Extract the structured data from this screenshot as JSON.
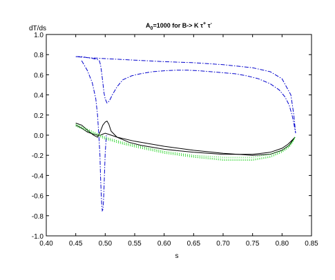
{
  "chart_data": {
    "type": "line",
    "title": {
      "prefix": "A",
      "prefix_sub": "0",
      "middle": "=1000 for B-> K ",
      "tau1": "τ",
      "tau1_sup": "+",
      "tau2": " τ",
      "tau2_sup": "-"
    },
    "xlabel": "s",
    "ylabel": "dT/ds",
    "xlim": [
      0.4,
      0.85
    ],
    "ylim": [
      -1.0,
      1.0
    ],
    "xticks": [
      "0.40",
      "0.45",
      "0.50",
      "0.55",
      "0.60",
      "0.65",
      "0.70",
      "0.75",
      "0.80",
      "0.85"
    ],
    "yticks": [
      "-1.0",
      "-0.8",
      "-0.6",
      "-0.4",
      "-0.2",
      "0.0",
      "0.2",
      "0.4",
      "0.6",
      "0.8",
      "1.0"
    ],
    "grid": false,
    "series": [
      {
        "color": "#0000cc",
        "style": "dashdot",
        "x": [
          0.45,
          0.46,
          0.47,
          0.48,
          0.487,
          0.49,
          0.492,
          0.494,
          0.496,
          0.498,
          0.5,
          0.503,
          0.507,
          0.512,
          0.52,
          0.53,
          0.545,
          0.56,
          0.58,
          0.6,
          0.62,
          0.64,
          0.66,
          0.68,
          0.7,
          0.72,
          0.74,
          0.76,
          0.78,
          0.795,
          0.805,
          0.812,
          0.817,
          0.82,
          0.822,
          0.823,
          0.822,
          0.82,
          0.815,
          0.8,
          0.78,
          0.75,
          0.7,
          0.65,
          0.6,
          0.55,
          0.5,
          0.47,
          0.45
        ],
        "y": [
          0.78,
          0.78,
          0.77,
          0.76,
          0.75,
          0.74,
          0.7,
          0.62,
          0.52,
          0.42,
          0.36,
          0.32,
          0.34,
          0.4,
          0.48,
          0.55,
          0.59,
          0.61,
          0.63,
          0.64,
          0.645,
          0.645,
          0.64,
          0.63,
          0.62,
          0.61,
          0.59,
          0.56,
          0.51,
          0.45,
          0.38,
          0.3,
          0.2,
          0.12,
          0.05,
          0.02,
          0.08,
          0.2,
          0.4,
          0.56,
          0.63,
          0.67,
          0.7,
          0.72,
          0.73,
          0.745,
          0.76,
          0.77,
          0.78
        ]
      },
      {
        "color": "#0000cc",
        "style": "dashdot",
        "x": [
          0.46,
          0.47,
          0.478,
          0.484,
          0.487,
          0.489,
          0.491,
          0.492,
          0.493,
          0.494,
          0.495,
          0.496,
          0.497,
          0.498,
          0.499,
          0.5,
          0.502
        ],
        "y": [
          0.74,
          0.64,
          0.52,
          0.36,
          0.2,
          0.02,
          -0.2,
          -0.4,
          -0.56,
          -0.68,
          -0.75,
          -0.74,
          -0.66,
          -0.52,
          -0.34,
          -0.18,
          0.0
        ]
      },
      {
        "color": "#000000",
        "style": "solid",
        "x": [
          0.45,
          0.46,
          0.47,
          0.48,
          0.487,
          0.492,
          0.496,
          0.5,
          0.503,
          0.506,
          0.51,
          0.52,
          0.54,
          0.56,
          0.6,
          0.65,
          0.7,
          0.75,
          0.78,
          0.8,
          0.81,
          0.817,
          0.822
        ],
        "y": [
          0.12,
          0.1,
          0.05,
          -0.0,
          -0.02,
          0.04,
          0.1,
          0.13,
          0.14,
          0.11,
          0.04,
          -0.02,
          -0.07,
          -0.1,
          -0.14,
          -0.17,
          -0.19,
          -0.19,
          -0.17,
          -0.13,
          -0.09,
          -0.05,
          -0.02
        ]
      },
      {
        "color": "#000000",
        "style": "solid",
        "x": [
          0.45,
          0.46,
          0.47,
          0.48,
          0.487,
          0.492,
          0.496,
          0.5,
          0.505,
          0.52,
          0.55,
          0.6,
          0.65,
          0.7,
          0.75,
          0.78,
          0.8,
          0.812,
          0.818,
          0.822
        ],
        "y": [
          0.1,
          0.07,
          0.03,
          0.01,
          0.0,
          0.0,
          0.01,
          0.02,
          0.01,
          -0.02,
          -0.06,
          -0.11,
          -0.15,
          -0.18,
          -0.2,
          -0.19,
          -0.15,
          -0.1,
          -0.05,
          -0.02
        ]
      },
      {
        "color": "#00cc00",
        "style": "dotted",
        "x": [
          0.45,
          0.47,
          0.5,
          0.53,
          0.56,
          0.6,
          0.65,
          0.7,
          0.75,
          0.78,
          0.8,
          0.812,
          0.818,
          0.822
        ],
        "y": [
          0.1,
          0.05,
          -0.03,
          -0.08,
          -0.12,
          -0.17,
          -0.21,
          -0.24,
          -0.24,
          -0.21,
          -0.16,
          -0.11,
          -0.06,
          -0.02
        ]
      },
      {
        "color": "#00cc00",
        "style": "dotted",
        "x": [
          0.45,
          0.47,
          0.5,
          0.53,
          0.56,
          0.6,
          0.65,
          0.7,
          0.75,
          0.78,
          0.8,
          0.812,
          0.818,
          0.822
        ],
        "y": [
          0.11,
          0.06,
          -0.02,
          -0.07,
          -0.11,
          -0.16,
          -0.2,
          -0.22,
          -0.22,
          -0.19,
          -0.15,
          -0.1,
          -0.06,
          -0.02
        ]
      },
      {
        "color": "#00cc00",
        "style": "dotted",
        "x": [
          0.45,
          0.47,
          0.5,
          0.53,
          0.56,
          0.6,
          0.65,
          0.7,
          0.75,
          0.78,
          0.8,
          0.812,
          0.818,
          0.822
        ],
        "y": [
          0.09,
          0.04,
          -0.04,
          -0.09,
          -0.13,
          -0.18,
          -0.22,
          -0.25,
          -0.25,
          -0.22,
          -0.17,
          -0.12,
          -0.07,
          -0.02
        ]
      }
    ]
  }
}
